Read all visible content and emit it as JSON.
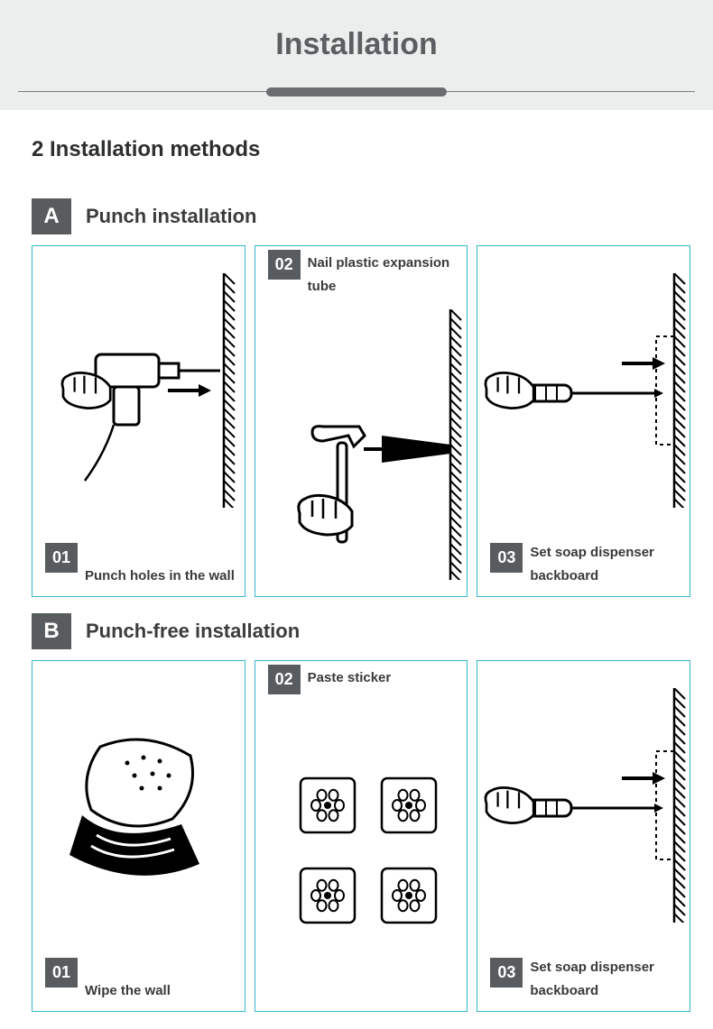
{
  "header": {
    "title": "Installation"
  },
  "subtitle": "2 Installation methods",
  "colors": {
    "header_bg": "#eceded",
    "header_text": "#5c5f61",
    "badge_bg": "#595c5e",
    "card_border": "#32b8cc",
    "body_text": "#3a3c3d"
  },
  "methods": [
    {
      "badge": "A",
      "title": "Punch installation",
      "steps": [
        {
          "num": "01",
          "num_pos": "bottom",
          "text": "Punch holes in the wall",
          "text_pos": "bottom",
          "illus": "drill"
        },
        {
          "num": "02",
          "num_pos": "top",
          "text": "Nail plastic expansion tube",
          "text_pos": "top",
          "illus": "hammer"
        },
        {
          "num": "03",
          "num_pos": "bottom",
          "text": "Set soap dispenser backboard",
          "text_pos": "bottom",
          "illus": "screwdriver"
        }
      ]
    },
    {
      "badge": "B",
      "title": "Punch-free installation",
      "steps": [
        {
          "num": "01",
          "num_pos": "bottom",
          "text": "Wipe the wall",
          "text_pos": "bottom",
          "illus": "wipe"
        },
        {
          "num": "02",
          "num_pos": "top",
          "text": "Paste sticker",
          "text_pos": "top",
          "illus": "stickers"
        },
        {
          "num": "03",
          "num_pos": "bottom",
          "text": "Set soap dispenser backboard",
          "text_pos": "bottom",
          "illus": "screwdriver"
        }
      ]
    }
  ]
}
